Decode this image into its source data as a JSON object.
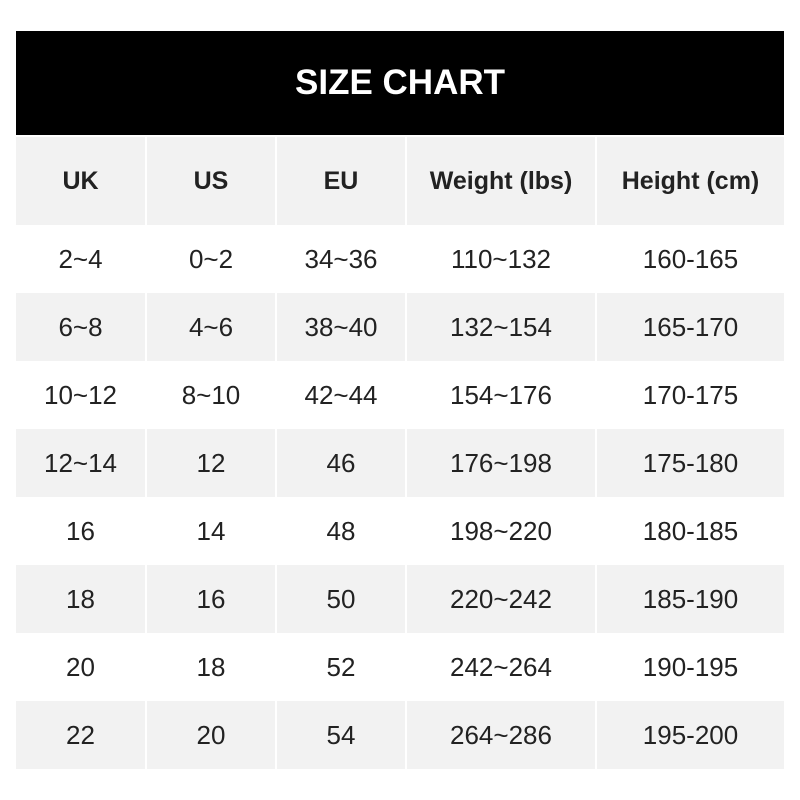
{
  "title": "SIZE CHART",
  "headers": [
    "UK",
    "US",
    "EU",
    "Weight (lbs)",
    "Height (cm)"
  ],
  "rows": [
    [
      "2~4",
      "0~2",
      "34~36",
      "110~132",
      "160-165"
    ],
    [
      "6~8",
      "4~6",
      "38~40",
      "132~154",
      "165-170"
    ],
    [
      "10~12",
      "8~10",
      "42~44",
      "154~176",
      "170-175"
    ],
    [
      "12~14",
      "12",
      "46",
      "176~198",
      "175-180"
    ],
    [
      "16",
      "14",
      "48",
      "198~220",
      "180-185"
    ],
    [
      "18",
      "16",
      "50",
      "220~242",
      "185-190"
    ],
    [
      "20",
      "18",
      "52",
      "242~264",
      "190-195"
    ],
    [
      "22",
      "20",
      "54",
      "264~286",
      "195-200"
    ]
  ],
  "colors": {
    "header_bg": "#000000",
    "row_alt_bg": "#f2f2f2",
    "text": "#222222"
  }
}
